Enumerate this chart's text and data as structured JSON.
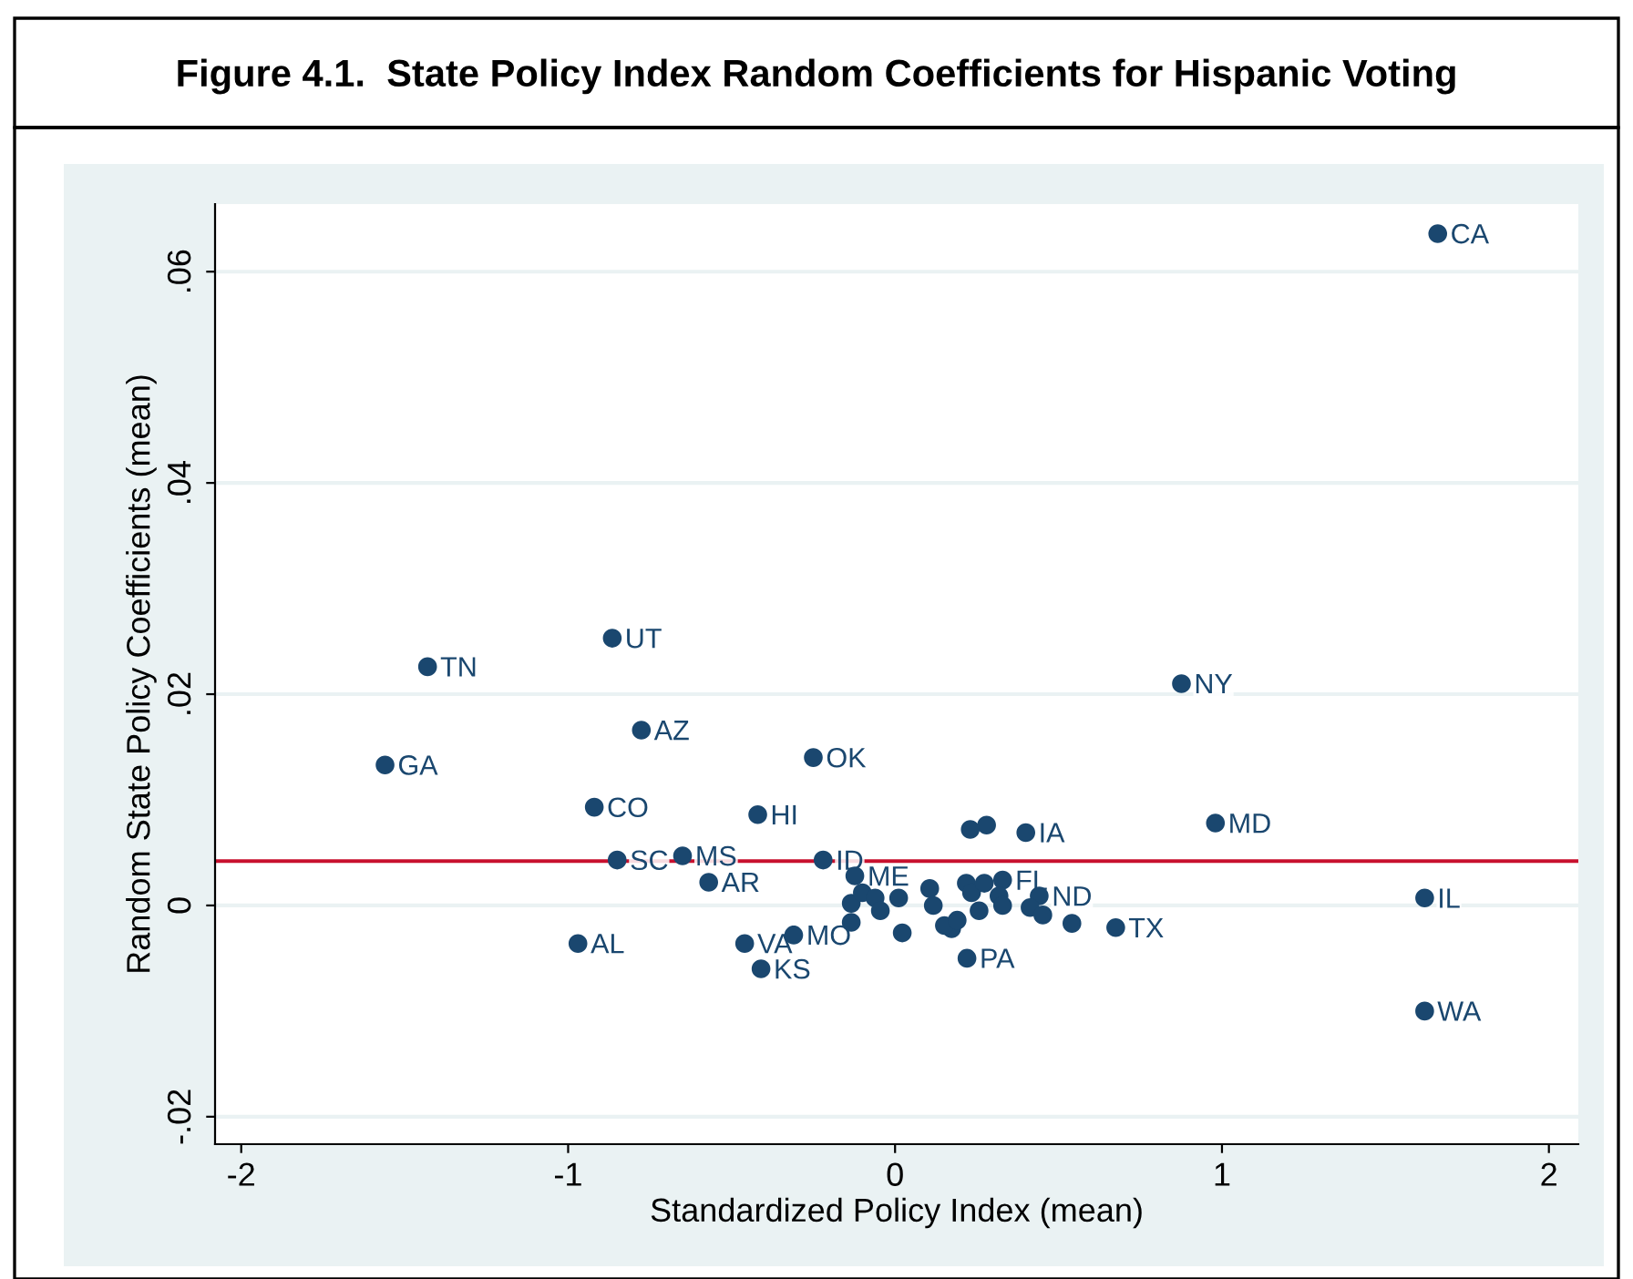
{
  "chart_data": {
    "type": "scatter",
    "title": "Figure 4.1.  State Policy Index Random Coefficients for Hispanic Voting",
    "xlabel": "Standardized Policy Index (mean)",
    "ylabel": "Random State Policy Coefficients (mean)",
    "series": [
      {
        "color": "#1a476f",
        "x": [
          1.66,
          -0.865,
          -1.43,
          -0.776,
          -1.56,
          -0.25,
          -0.92,
          -0.42,
          0.876,
          0.98,
          -0.85,
          -0.65,
          -0.57,
          -0.22,
          -0.97,
          -0.46,
          -0.31,
          -0.41,
          0.22,
          1.62,
          1.62,
          0.675,
          0.4,
          0.28,
          0.23,
          -0.123,
          -0.134,
          -0.134,
          -0.1,
          -0.061,
          -0.045,
          0.011,
          0.022,
          0.106,
          0.117,
          0.173,
          0.151,
          0.19,
          0.218,
          0.234,
          0.273,
          0.257,
          0.329,
          0.318,
          0.329,
          0.441,
          0.413,
          0.452,
          0.541
        ],
        "values": [
          0.0636,
          0.0253,
          0.0226,
          0.0166,
          0.0133,
          0.014,
          0.0093,
          0.0086,
          0.021,
          0.0078,
          0.0043,
          0.0047,
          0.0022,
          0.0043,
          -0.0036,
          -0.0036,
          -0.0028,
          -0.006,
          -0.005,
          0.0007,
          -0.01,
          -0.0021,
          0.0069,
          0.0076,
          0.0072,
          0.0028,
          0.0002,
          -0.0016,
          0.0012,
          0.0007,
          -0.0005,
          0.0007,
          -0.0026,
          0.0016,
          0.0,
          -0.0022,
          -0.0019,
          -0.0014,
          0.0021,
          0.0012,
          0.0021,
          -0.0005,
          0.0024,
          0.0009,
          0.0,
          0.0009,
          -0.0002,
          -0.0009,
          -0.0017
        ]
      }
    ],
    "annotations": [
      {
        "text": "CA",
        "x": 1.66,
        "y": 0.0636
      },
      {
        "text": "UT",
        "x": -0.865,
        "y": 0.0253
      },
      {
        "text": "TN",
        "x": -1.43,
        "y": 0.0226
      },
      {
        "text": "AZ",
        "x": -0.776,
        "y": 0.0166
      },
      {
        "text": "GA",
        "x": -1.56,
        "y": 0.0133
      },
      {
        "text": "OK",
        "x": -0.25,
        "y": 0.014
      },
      {
        "text": "CO",
        "x": -0.92,
        "y": 0.0093
      },
      {
        "text": "HI",
        "x": -0.42,
        "y": 0.0086
      },
      {
        "text": "NY",
        "x": 0.876,
        "y": 0.021
      },
      {
        "text": "MD",
        "x": 0.98,
        "y": 0.0078
      },
      {
        "text": "SC",
        "x": -0.85,
        "y": 0.0043
      },
      {
        "text": "MS",
        "x": -0.65,
        "y": 0.0047
      },
      {
        "text": "AR",
        "x": -0.57,
        "y": 0.0022
      },
      {
        "text": "ID",
        "x": -0.22,
        "y": 0.0043
      },
      {
        "text": "AL",
        "x": -0.97,
        "y": -0.0036
      },
      {
        "text": "VA",
        "x": -0.46,
        "y": -0.0036
      },
      {
        "text": "MO",
        "x": -0.31,
        "y": -0.0028
      },
      {
        "text": "KS",
        "x": -0.41,
        "y": -0.006
      },
      {
        "text": "PA",
        "x": 0.22,
        "y": -0.005
      },
      {
        "text": "IL",
        "x": 1.62,
        "y": 0.0007
      },
      {
        "text": "WA",
        "x": 1.62,
        "y": -0.01
      },
      {
        "text": "TX",
        "x": 0.675,
        "y": -0.0021
      },
      {
        "text": "IA",
        "x": 0.4,
        "y": 0.0069
      },
      {
        "text": "ME",
        "x": -0.123,
        "y": 0.0028
      },
      {
        "text": "FL",
        "x": 0.329,
        "y": 0.0024
      },
      {
        "text": "ND",
        "x": 0.441,
        "y": 0.0009
      }
    ],
    "ref_lines": [
      {
        "axis": "y",
        "value": 0.0042,
        "color": "#c8102e"
      }
    ],
    "xlim": [
      -2.08,
      2.09
    ],
    "ylim": [
      -0.0226,
      0.0664
    ],
    "xticks": [
      -2,
      -1,
      0,
      1,
      2
    ],
    "yticks": [
      {
        "value": -0.02,
        "label": "-.02"
      },
      {
        "value": 0,
        "label": "0"
      },
      {
        "value": 0.02,
        "label": ".02"
      },
      {
        "value": 0.04,
        "label": ".04"
      },
      {
        "value": 0.06,
        "label": ".06"
      }
    ],
    "grid": "y",
    "marker": "circle",
    "legend": false
  }
}
